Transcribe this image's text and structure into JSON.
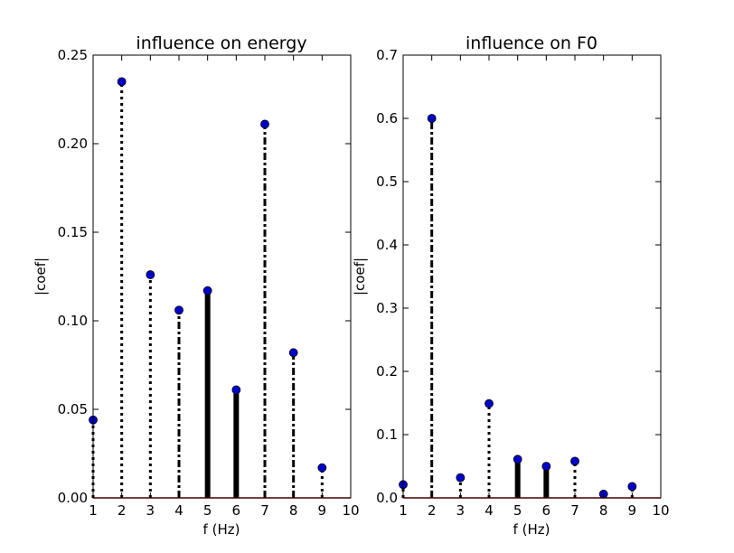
{
  "chart_data": [
    {
      "type": "stem",
      "title": "influence on energy",
      "xlabel": "f (Hz)",
      "ylabel": "|coef|",
      "xlim": [
        1,
        10
      ],
      "ylim": [
        0,
        0.25
      ],
      "xticks": [
        "1",
        "2",
        "3",
        "4",
        "5",
        "6",
        "7",
        "8",
        "9",
        "10"
      ],
      "yticks": [
        "0.00",
        "0.05",
        "0.10",
        "0.15",
        "0.20",
        "0.25"
      ],
      "x": [
        1,
        2,
        3,
        4,
        5,
        6,
        7,
        8,
        9
      ],
      "values": [
        0.044,
        0.235,
        0.126,
        0.106,
        0.117,
        0.061,
        0.211,
        0.082,
        0.017
      ],
      "stem_styles": [
        "dotted",
        "dotted",
        "dotted",
        "dashdot",
        "solid",
        "solid",
        "dashdot",
        "dashdot",
        "dotted"
      ],
      "marker_color": "#0000cc",
      "baseline_color": "#cc0000"
    },
    {
      "type": "stem",
      "title": "influence on F0",
      "xlabel": "f (Hz)",
      "ylabel": "|coef|",
      "xlim": [
        1,
        10
      ],
      "ylim": [
        0,
        0.7
      ],
      "xticks": [
        "1",
        "2",
        "3",
        "4",
        "5",
        "6",
        "7",
        "8",
        "9",
        "10"
      ],
      "yticks": [
        "0.0",
        "0.1",
        "0.2",
        "0.3",
        "0.4",
        "0.5",
        "0.6",
        "0.7"
      ],
      "x": [
        1,
        2,
        3,
        4,
        5,
        6,
        7,
        8,
        9
      ],
      "values": [
        0.021,
        0.6,
        0.032,
        0.149,
        0.061,
        0.05,
        0.058,
        0.006,
        0.018
      ],
      "stem_styles": [
        "dotted",
        "dashdot",
        "dotted",
        "dotted",
        "solid",
        "solid",
        "dotted",
        "dotted",
        "dotted"
      ],
      "marker_color": "#0000cc",
      "baseline_color": "#cc0000"
    }
  ]
}
